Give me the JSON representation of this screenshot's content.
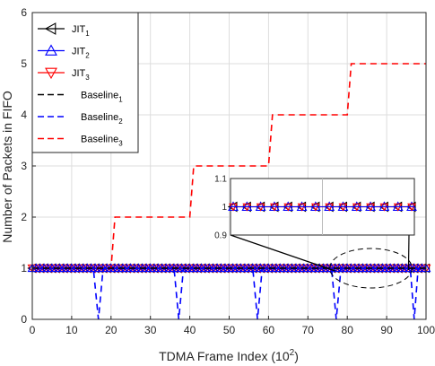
{
  "chart_data": {
    "type": "line",
    "xlabel": "TDMA Frame Index (10",
    "xlabel_sup": "2",
    "xlabel_end": ")",
    "ylabel": "Number of Packets in FIFO",
    "xlim": [
      0,
      100
    ],
    "ylim": [
      0,
      6
    ],
    "xticks": [
      "0",
      "10",
      "20",
      "30",
      "40",
      "50",
      "60",
      "70",
      "80",
      "90",
      "100"
    ],
    "yticks": [
      "0",
      "1",
      "2",
      "3",
      "4",
      "5",
      "6"
    ],
    "grid": true,
    "legend_position": "top-left",
    "series": [
      {
        "name": "JIT",
        "sub": "1",
        "color": "#000000",
        "style": "solid",
        "marker": "triangle-left",
        "x": [
          0,
          100
        ],
        "y": [
          1,
          1
        ]
      },
      {
        "name": "JIT",
        "sub": "2",
        "color": "#0000ff",
        "style": "solid",
        "marker": "triangle-up",
        "x": [
          0,
          100
        ],
        "y": [
          1,
          1
        ]
      },
      {
        "name": "JIT",
        "sub": "3",
        "color": "#ff0000",
        "style": "solid",
        "marker": "triangle-down",
        "x": [
          0,
          100
        ],
        "y": [
          1,
          1
        ]
      },
      {
        "name": "Baseline",
        "sub": "1",
        "color": "#000000",
        "style": "dashed",
        "x": [
          0,
          100
        ],
        "y": [
          1,
          1
        ]
      },
      {
        "name": "Baseline",
        "sub": "2",
        "color": "#0000ff",
        "style": "dashed",
        "x": [
          0,
          15.5,
          16.8,
          18.0,
          36.0,
          37.2,
          38.4,
          56.0,
          57.2,
          58.4,
          76.0,
          77.2,
          78.4,
          96.0,
          97.0,
          98.0,
          100
        ],
        "y": [
          1,
          1,
          0,
          1,
          1,
          0,
          1,
          1,
          0,
          1,
          1,
          0,
          1,
          1,
          0,
          1,
          1
        ]
      },
      {
        "name": "Baseline",
        "sub": "3",
        "color": "#ff0000",
        "style": "dashed",
        "x": [
          0,
          20,
          21,
          40,
          41,
          60,
          61,
          80,
          81,
          100
        ],
        "y": [
          1,
          1,
          2,
          2,
          3,
          3,
          4,
          4,
          5,
          5
        ]
      }
    ],
    "inset": {
      "xlim": [
        76,
        96
      ],
      "ylim": [
        0.9,
        1.1
      ],
      "yticks": [
        "0.9",
        "1",
        "1.1"
      ],
      "y": 1
    }
  }
}
